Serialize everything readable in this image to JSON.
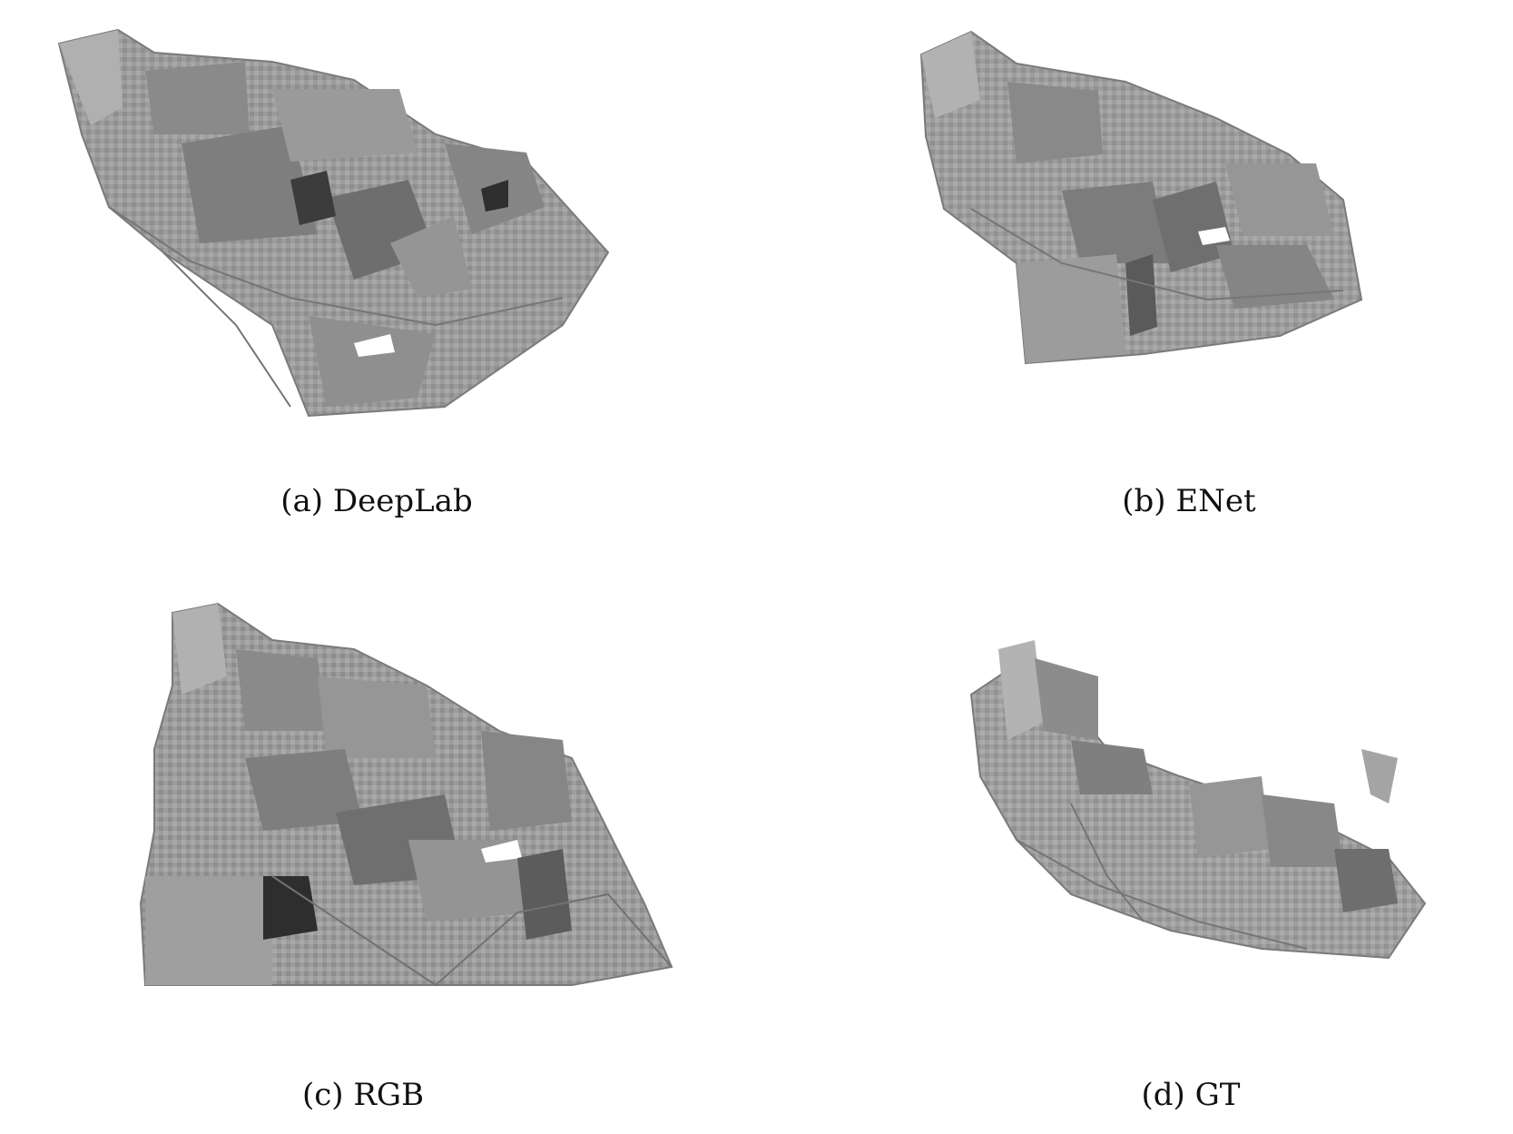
{
  "figure": {
    "panels": [
      {
        "id": "a",
        "caption": "(a) DeepLab"
      },
      {
        "id": "b",
        "caption": "(b) ENet"
      },
      {
        "id": "c",
        "caption": "(c) RGB"
      },
      {
        "id": "d",
        "caption": "(d) GT"
      }
    ]
  },
  "colors": {
    "background": "#ffffff",
    "mesh_light": "#a9a9a9",
    "mesh_mid": "#8f8f8f",
    "mesh_dark": "#6b6b6b",
    "mesh_shadow": "#3c3c3c"
  }
}
